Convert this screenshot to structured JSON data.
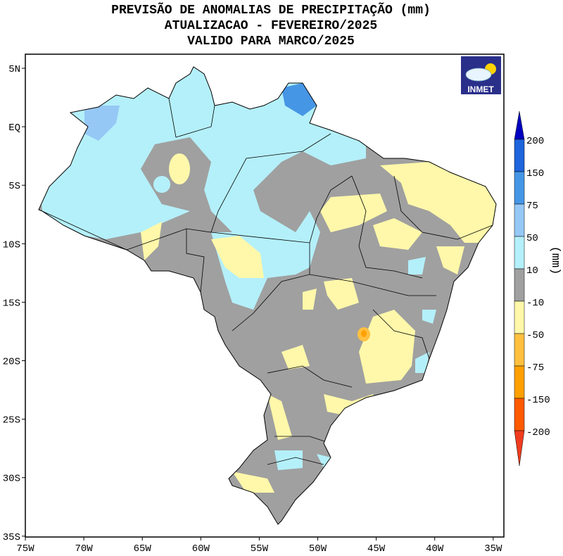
{
  "title": {
    "line1": "PREVISÃO DE ANOMALIAS DE PRECIPITAÇÃO (mm)",
    "line2": "ATUALIZACAO - FEVEREIRO/2025",
    "line3": "VALIDO PARA MARCO/2025"
  },
  "axes": {
    "lon_ticks": [
      "75W",
      "70W",
      "65W",
      "60W",
      "55W",
      "50W",
      "45W",
      "40W",
      "35W"
    ],
    "lat_ticks": [
      "5N",
      "EQ",
      "5S",
      "10S",
      "15S",
      "20S",
      "25S",
      "30S",
      "35S"
    ]
  },
  "logo": {
    "text": "INMET",
    "icon": "cloud-sun-icon"
  },
  "legend": {
    "unit": "(mm)",
    "labels": [
      "200",
      "150",
      "75",
      "50",
      "10",
      "-10",
      "-50",
      "-75",
      "-150",
      "-200"
    ],
    "colors": [
      "#0000c0",
      "#1e64dc",
      "#4696e6",
      "#96c8f5",
      "#b4f0fa",
      "#a0a0a0",
      "#fff8aa",
      "#ffc040",
      "#ffa000",
      "#ff5a00",
      "#f03c1e"
    ]
  }
}
